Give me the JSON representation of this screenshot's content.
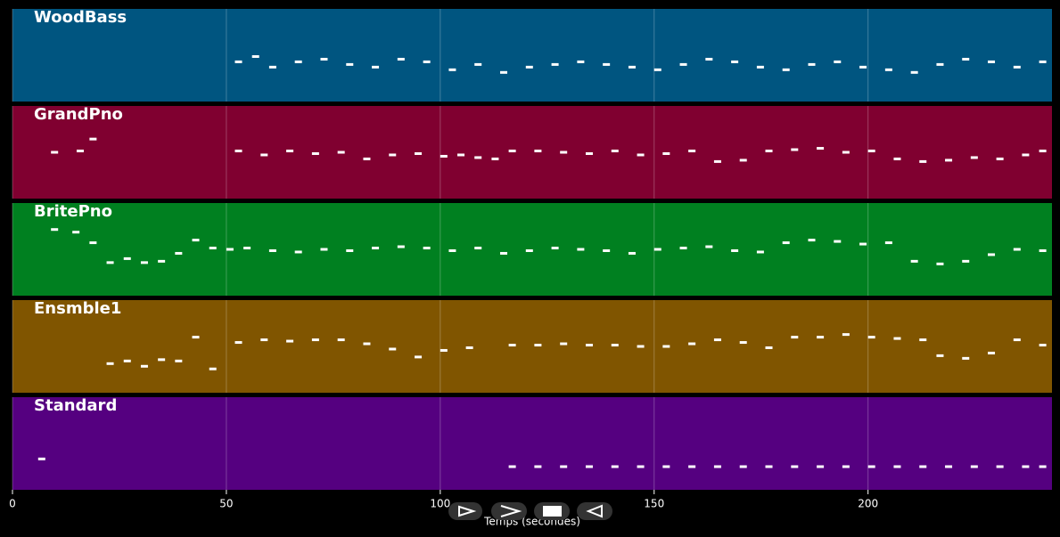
{
  "chart_data": {
    "type": "piano-roll",
    "xlabel": "Temps (secondes)",
    "xlim": [
      0,
      243
    ],
    "xticks": [
      0,
      50,
      100,
      150,
      200
    ],
    "series": [
      {
        "name": "WoodBass",
        "color": "#005580",
        "ylim": [
          25,
          60
        ],
        "x": [
          52,
          56,
          60,
          66,
          72,
          78,
          84,
          90,
          96,
          102,
          108,
          114,
          120,
          126,
          132,
          138,
          144,
          150,
          156,
          162,
          168,
          174,
          180,
          186,
          192,
          198,
          204,
          210,
          216,
          222,
          228,
          234,
          240
        ],
        "values": [
          40,
          42,
          38,
          40,
          41,
          39,
          38,
          41,
          40,
          37,
          39,
          36,
          38,
          39,
          40,
          39,
          38,
          37,
          39,
          41,
          40,
          38,
          37,
          39,
          40,
          38,
          37,
          36,
          39,
          41,
          40,
          38,
          40
        ]
      },
      {
        "name": "GrandPno",
        "color": "#800030",
        "ylim": [
          30,
          100
        ],
        "x": [
          9,
          15,
          18,
          52,
          58,
          64,
          70,
          76,
          82,
          88,
          94,
          100,
          104,
          108,
          112,
          116,
          122,
          128,
          134,
          140,
          146,
          152,
          158,
          164,
          170,
          176,
          182,
          188,
          194,
          200,
          206,
          212,
          218,
          224,
          230,
          236,
          240
        ],
        "values": [
          65,
          66,
          75,
          66,
          63,
          66,
          64,
          65,
          60,
          63,
          64,
          62,
          63,
          61,
          60,
          66,
          66,
          65,
          64,
          66,
          63,
          64,
          66,
          58,
          59,
          66,
          67,
          68,
          65,
          66,
          60,
          58,
          59,
          61,
          60,
          63,
          66
        ]
      },
      {
        "name": "BritePno",
        "color": "#008020",
        "ylim": [
          30,
          100
        ],
        "x": [
          9,
          14,
          18,
          22,
          26,
          30,
          34,
          38,
          42,
          46,
          50,
          54,
          60,
          66,
          72,
          78,
          84,
          90,
          96,
          102,
          108,
          114,
          120,
          126,
          132,
          138,
          144,
          150,
          156,
          162,
          168,
          174,
          180,
          186,
          192,
          198,
          204,
          210,
          216,
          222,
          228,
          234,
          240
        ],
        "values": [
          80,
          78,
          70,
          55,
          58,
          55,
          56,
          62,
          72,
          66,
          65,
          66,
          64,
          63,
          65,
          64,
          66,
          67,
          66,
          64,
          66,
          62,
          64,
          66,
          65,
          64,
          62,
          65,
          66,
          67,
          64,
          63,
          70,
          72,
          71,
          69,
          70,
          56,
          54,
          56,
          61,
          65,
          64
        ]
      },
      {
        "name": "Ensmble1",
        "color": "#805500",
        "ylim": [
          30,
          100
        ],
        "x": [
          22,
          26,
          30,
          34,
          38,
          42,
          46,
          52,
          58,
          64,
          70,
          76,
          82,
          88,
          94,
          100,
          106,
          116,
          122,
          128,
          134,
          140,
          146,
          152,
          158,
          164,
          170,
          176,
          182,
          188,
          194,
          200,
          206,
          212,
          216,
          222,
          228,
          234,
          240
        ],
        "values": [
          52,
          54,
          50,
          55,
          54,
          72,
          48,
          68,
          70,
          69,
          70,
          70,
          67,
          63,
          57,
          62,
          64,
          66,
          66,
          67,
          66,
          66,
          65,
          65,
          67,
          70,
          68,
          64,
          72,
          72,
          74,
          72,
          71,
          70,
          58,
          56,
          60,
          70,
          66
        ]
      },
      {
        "name": "Standard",
        "color": "#550080",
        "ylim": [
          20,
          80
        ],
        "x": [
          6,
          116,
          122,
          128,
          134,
          140,
          146,
          152,
          158,
          164,
          170,
          176,
          182,
          188,
          194,
          200,
          206,
          212,
          218,
          224,
          230,
          236,
          240
        ],
        "values": [
          40,
          35,
          35,
          35,
          35,
          35,
          35,
          35,
          35,
          35,
          35,
          35,
          35,
          35,
          35,
          35,
          35,
          35,
          35,
          35,
          35,
          35,
          35
        ]
      }
    ]
  }
}
